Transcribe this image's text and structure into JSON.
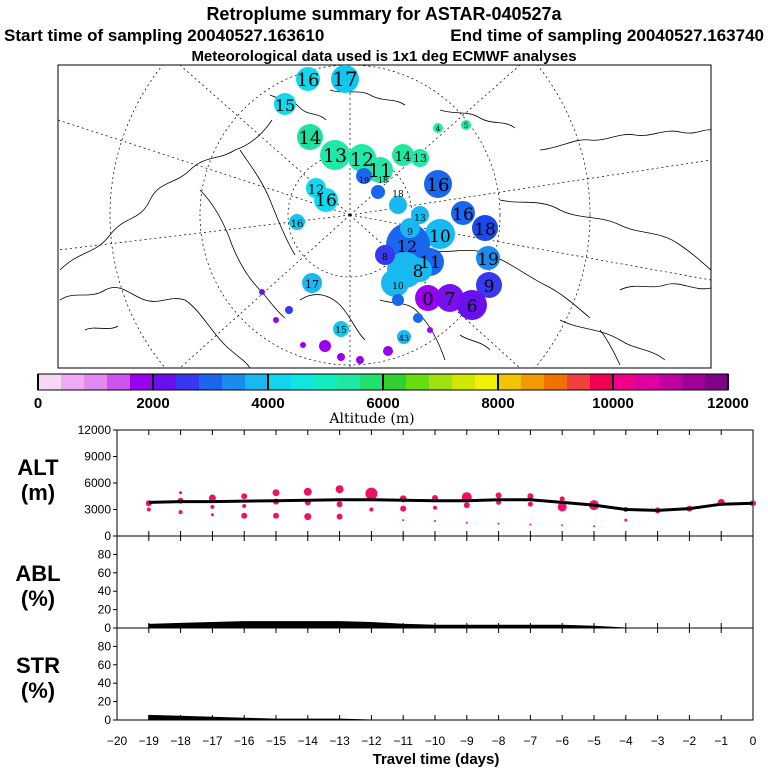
{
  "header": {
    "title": "Retroplume summary for ASTAR-040527a",
    "start_label": "Start time of sampling 20040527.163610",
    "end_label": "End time of sampling 20040527.163740",
    "met_label": "Meteorological data used is 1x1 deg ECMWF analyses"
  },
  "colorbar": {
    "title": "Altitude (m)",
    "ticks": [
      "0",
      "2000",
      "4000",
      "6000",
      "8000",
      "10000",
      "12000"
    ],
    "colors": [
      "#f5d8f5",
      "#eeaaf2",
      "#e28af0",
      "#cc55ee",
      "#9a00f0",
      "#6a10ee",
      "#3838ee",
      "#1c66ee",
      "#1a8cf0",
      "#18b8f0",
      "#10d4f0",
      "#10e6e0",
      "#10eec0",
      "#20e8a0",
      "#20e070",
      "#30d030",
      "#66dd10",
      "#a0e010",
      "#d0e800",
      "#f0f000",
      "#f0c400",
      "#f09c00",
      "#f07000",
      "#f04040",
      "#f00050",
      "#f0008a",
      "#e000a0",
      "#c000a0",
      "#a00098",
      "#800088"
    ]
  },
  "colors": {
    "plume": "#ee1166",
    "line": "#000000"
  },
  "map": {
    "day_labels": [
      {
        "t": "16",
        "c": "#10d8ee"
      },
      {
        "t": "17",
        "c": "#10c8ee"
      },
      {
        "t": "15",
        "c": "#10d8ee"
      },
      {
        "t": "14",
        "c": "#20e0a0"
      },
      {
        "t": "13",
        "c": "#20e8a8"
      },
      {
        "t": "12",
        "c": "#20e8a8"
      },
      {
        "t": "11",
        "c": "#20e8a8"
      },
      {
        "t": "14",
        "c": "#20e8a0"
      },
      {
        "t": "13",
        "c": "#20e8a8"
      },
      {
        "t": "12",
        "c": "#20e8a8"
      },
      {
        "t": "16",
        "c": "#20e8a8"
      },
      {
        "t": "16",
        "c": "#20e8a8"
      },
      {
        "t": "16",
        "c": "#10d8ee"
      },
      {
        "t": "18",
        "c": "#10d8ee"
      },
      {
        "t": "19",
        "c": "#1a66ee"
      },
      {
        "t": "9",
        "c": "#1a66ee"
      },
      {
        "t": "10",
        "c": "#1a4aee"
      },
      {
        "t": "11",
        "c": "#1a8cf0"
      },
      {
        "t": "12",
        "c": "#3838ee"
      },
      {
        "t": "8",
        "c": "#18b8f0"
      },
      {
        "t": "0",
        "c": "#1a66ee"
      },
      {
        "t": "7",
        "c": "#18b8f0"
      },
      {
        "t": "6",
        "c": "#18b8f0"
      },
      {
        "t": "16",
        "c": "#9a00f0"
      },
      {
        "t": "15",
        "c": "#7a10ee"
      },
      {
        "t": "43",
        "c": "#6a10ee"
      },
      {
        "t": "17",
        "c": "#10c8ee"
      },
      {
        "t": "18",
        "c": "#10c8ee"
      },
      {
        "t": "18",
        "c": "#18b8f0"
      },
      {
        "t": "19",
        "c": "#18b8f0"
      },
      {
        "t": "13",
        "c": "#18b8f0"
      },
      {
        "t": "9",
        "c": "#10c8ee"
      },
      {
        "t": "8",
        "c": "#18b8f0"
      },
      {
        "t": "10",
        "c": "#18b8f0"
      },
      {
        "t": "4",
        "c": "#18b8f0"
      },
      {
        "t": "5",
        "c": "#18b8f0"
      }
    ]
  },
  "panels": {
    "alt": {
      "name": "ALT",
      "unit": "(m)",
      "yticks": [
        "0",
        "3000",
        "6000",
        "9000",
        "12000"
      ]
    },
    "abl": {
      "name": "ABL",
      "unit": "(%)",
      "yticks": [
        "0",
        "20",
        "40",
        "60",
        "80"
      ]
    },
    "str": {
      "name": "STR",
      "unit": "(%)",
      "yticks": [
        "0",
        "20",
        "40",
        "60",
        "80"
      ]
    }
  },
  "xaxis": {
    "label": "Travel time (days)",
    "ticks": [
      "−20",
      "−19",
      "−18",
      "−17",
      "−16",
      "−15",
      "−14",
      "−13",
      "−12",
      "−11",
      "−10",
      "−9",
      "−8",
      "−7",
      "−6",
      "−5",
      "−4",
      "−3",
      "−2",
      "−1",
      "0"
    ]
  },
  "chart_data": [
    {
      "type": "line",
      "title": "ALT (m)",
      "xlabel": "Travel time (days)",
      "ylabel": "ALT (m)",
      "xlim": [
        -20,
        0
      ],
      "ylim": [
        0,
        12000
      ],
      "x": [
        -19,
        -18,
        -17,
        -16,
        -15,
        -14,
        -13,
        -12,
        -11,
        -10,
        -9,
        -8,
        -7,
        -6,
        -5,
        -4,
        -3,
        -2,
        -1,
        0
      ],
      "mean_altitude": [
        3800,
        3900,
        3900,
        3950,
        4000,
        4050,
        4100,
        4100,
        4050,
        4000,
        4000,
        4100,
        4100,
        3800,
        3500,
        3000,
        2900,
        3100,
        3600,
        3700
      ],
      "clusters": [
        {
          "x": -19,
          "y": 3700,
          "s": 3
        },
        {
          "x": -19,
          "y": 3000,
          "s": 2
        },
        {
          "x": -18,
          "y": 4900,
          "s": 1.5
        },
        {
          "x": -18,
          "y": 4000,
          "s": 3
        },
        {
          "x": -18,
          "y": 2700,
          "s": 2
        },
        {
          "x": -17,
          "y": 4300,
          "s": 3.5
        },
        {
          "x": -17,
          "y": 3300,
          "s": 2
        },
        {
          "x": -17,
          "y": 2400,
          "s": 1.5
        },
        {
          "x": -16,
          "y": 4500,
          "s": 3
        },
        {
          "x": -16,
          "y": 3400,
          "s": 2
        },
        {
          "x": -16,
          "y": 2300,
          "s": 3
        },
        {
          "x": -15,
          "y": 4900,
          "s": 3.5
        },
        {
          "x": -15,
          "y": 3900,
          "s": 3
        },
        {
          "x": -15,
          "y": 2300,
          "s": 3
        },
        {
          "x": -14,
          "y": 5000,
          "s": 4
        },
        {
          "x": -14,
          "y": 3800,
          "s": 3
        },
        {
          "x": -14,
          "y": 2200,
          "s": 3.5
        },
        {
          "x": -13,
          "y": 5300,
          "s": 4
        },
        {
          "x": -13,
          "y": 3600,
          "s": 3
        },
        {
          "x": -13,
          "y": 2200,
          "s": 3
        },
        {
          "x": -12,
          "y": 4800,
          "s": 6
        },
        {
          "x": -12,
          "y": 3000,
          "s": 2
        },
        {
          "x": -11,
          "y": 4200,
          "s": 3.5
        },
        {
          "x": -11,
          "y": 3100,
          "s": 3
        },
        {
          "x": -11,
          "y": 1800,
          "s": 1
        },
        {
          "x": -10,
          "y": 4300,
          "s": 3
        },
        {
          "x": -10,
          "y": 3200,
          "s": 2
        },
        {
          "x": -10,
          "y": 1700,
          "s": 1
        },
        {
          "x": -9,
          "y": 4400,
          "s": 5
        },
        {
          "x": -9,
          "y": 3500,
          "s": 3
        },
        {
          "x": -9,
          "y": 1500,
          "s": 1
        },
        {
          "x": -8,
          "y": 4600,
          "s": 3
        },
        {
          "x": -8,
          "y": 3800,
          "s": 2.5
        },
        {
          "x": -8,
          "y": 1400,
          "s": 1
        },
        {
          "x": -7,
          "y": 4500,
          "s": 3
        },
        {
          "x": -7,
          "y": 3600,
          "s": 2.5
        },
        {
          "x": -7,
          "y": 1300,
          "s": 1
        },
        {
          "x": -6,
          "y": 4200,
          "s": 2.5
        },
        {
          "x": -6,
          "y": 3300,
          "s": 4.5
        },
        {
          "x": -6,
          "y": 1200,
          "s": 1
        },
        {
          "x": -5,
          "y": 3500,
          "s": 5
        },
        {
          "x": -5,
          "y": 1100,
          "s": 1
        },
        {
          "x": -4,
          "y": 3000,
          "s": 2.5
        },
        {
          "x": -4,
          "y": 1800,
          "s": 1.5
        },
        {
          "x": -3,
          "y": 2900,
          "s": 3
        },
        {
          "x": -2,
          "y": 3100,
          "s": 3
        },
        {
          "x": -1,
          "y": 3800,
          "s": 3.5
        },
        {
          "x": 0,
          "y": 3700,
          "s": 3
        }
      ]
    },
    {
      "type": "area",
      "title": "ABL (%)",
      "xlabel": "Travel time (days)",
      "ylabel": "ABL (%)",
      "xlim": [
        -20,
        0
      ],
      "ylim": [
        0,
        100
      ],
      "x": [
        -19,
        -18,
        -17,
        -16,
        -15,
        -14,
        -13,
        -12,
        -11,
        -10,
        -9,
        -8,
        -7,
        -6,
        -5,
        -4,
        -3,
        -2,
        -1,
        0
      ],
      "values": [
        4,
        5,
        6,
        7,
        7,
        7,
        7,
        6,
        4,
        3,
        3,
        3,
        3,
        3,
        2,
        0,
        0,
        0,
        0,
        0
      ]
    },
    {
      "type": "area",
      "title": "STR (%)",
      "xlabel": "Travel time (days)",
      "ylabel": "STR (%)",
      "xlim": [
        -20,
        0
      ],
      "ylim": [
        0,
        100
      ],
      "x": [
        -19,
        -18,
        -17,
        -16,
        -15,
        -14,
        -13,
        -12,
        -11,
        -10,
        -9,
        -8,
        -7,
        -6,
        -5,
        -4,
        -3,
        -2,
        -1,
        0
      ],
      "values": [
        5,
        4,
        3,
        2,
        1,
        1,
        1,
        0,
        0,
        0,
        0,
        0,
        0,
        0,
        0,
        0,
        0,
        0,
        0,
        0
      ]
    }
  ]
}
